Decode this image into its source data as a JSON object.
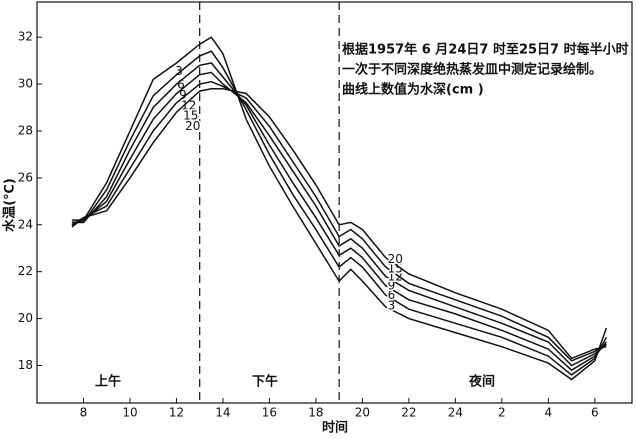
{
  "chart_data": {
    "type": "line",
    "xlabel": "时间",
    "ylabel": "水温(℃)",
    "annotation": [
      "根据1957年 6 月24日7 时至25日7 时每半小时",
      "一次于不同深度绝热蒸发皿中测定记录绘制。",
      "曲线上数值为水深(cm )"
    ],
    "periods": [
      "上午",
      "下午",
      "夜间"
    ],
    "dividers": [
      13,
      19
    ],
    "x": [
      7.5,
      8,
      9,
      10,
      11,
      12,
      13,
      13.5,
      14,
      15,
      16,
      17,
      18,
      19,
      19.5,
      20,
      21,
      22,
      24,
      26,
      28,
      29,
      30,
      30.5
    ],
    "series": [
      {
        "name": "3",
        "color": "#111111",
        "values": [
          24.2,
          24.2,
          25.8,
          28,
          30.2,
          30.9,
          31.7,
          32,
          31.3,
          28.5,
          26.5,
          24.8,
          23.2,
          21.6,
          22.1,
          21.6,
          20.5,
          20,
          19.4,
          18.8,
          18.1,
          17.4,
          18.2,
          19.6
        ]
      },
      {
        "name": "6",
        "color": "#111111",
        "values": [
          24.1,
          24.1,
          25.5,
          27.6,
          29.5,
          30.4,
          31.2,
          31.4,
          30.7,
          28.9,
          27,
          25.3,
          23.8,
          22.2,
          22.6,
          22.2,
          21,
          20.4,
          19.8,
          19.2,
          18.4,
          17.6,
          18.3,
          19.2
        ]
      },
      {
        "name": "9",
        "color": "#111111",
        "values": [
          24.1,
          24.1,
          25.2,
          27.2,
          29,
          30,
          30.8,
          30.9,
          30.3,
          29.1,
          27.4,
          25.8,
          24.3,
          22.7,
          23,
          22.6,
          21.4,
          20.8,
          20.2,
          19.5,
          18.7,
          17.8,
          18.4,
          19
        ]
      },
      {
        "name": "12",
        "color": "#111111",
        "values": [
          24,
          24.2,
          25,
          26.8,
          28.5,
          29.6,
          30.4,
          30.5,
          30,
          29.2,
          27.8,
          26.3,
          24.8,
          23.1,
          23.4,
          23,
          21.8,
          21.2,
          20.5,
          19.8,
          19,
          18,
          18.5,
          18.9
        ]
      },
      {
        "name": "15",
        "color": "#111111",
        "values": [
          24,
          24.3,
          24.8,
          26.4,
          28,
          29.2,
          30,
          30.1,
          29.9,
          29.4,
          28.2,
          26.7,
          25.2,
          23.5,
          23.8,
          23.4,
          22.2,
          21.5,
          20.8,
          20.1,
          19.2,
          18.2,
          18.6,
          18.9
        ]
      },
      {
        "name": "20",
        "color": "#111111",
        "values": [
          23.9,
          24.3,
          24.6,
          26,
          27.5,
          28.8,
          29.7,
          29.8,
          29.8,
          29.6,
          28.6,
          27.2,
          25.7,
          24,
          24.1,
          23.8,
          22.6,
          21.9,
          21.1,
          20.4,
          19.5,
          18.3,
          18.7,
          18.8
        ]
      }
    ],
    "xlim": [
      6,
      31.6
    ],
    "ylim": [
      16.4,
      33.5
    ],
    "xticks": [
      8,
      10,
      12,
      14,
      16,
      18,
      20,
      22,
      24,
      {
        "value": 26,
        "label": "2"
      },
      {
        "value": 28,
        "label": "4"
      },
      {
        "value": 30,
        "label": "6"
      }
    ],
    "yticks": [
      18,
      20,
      22,
      24,
      26,
      28,
      30,
      32
    ]
  }
}
